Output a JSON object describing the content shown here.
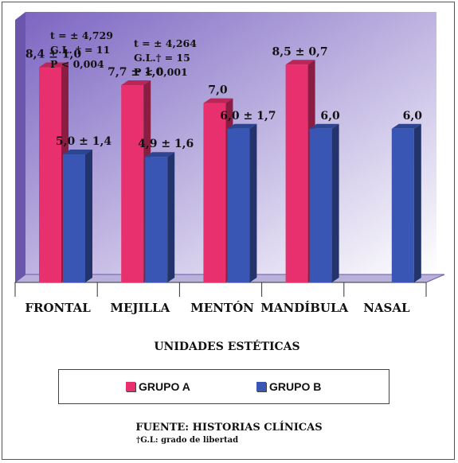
{
  "chart_data": {
    "type": "bar",
    "categories": [
      "FRONTAL",
      "MEJILLA",
      "MENTÓN",
      "MANDÍBULA",
      "NASAL"
    ],
    "series": [
      {
        "name": "GRUPO A",
        "values": [
          8.4,
          7.7,
          7.0,
          8.5,
          null
        ],
        "labels": [
          "8,4 ± 1,0",
          "7,7 ± 1,0",
          "7,0",
          "8,5 ± 0,7",
          ""
        ],
        "color": "#e8306e"
      },
      {
        "name": "GRUPO B",
        "values": [
          5.0,
          4.9,
          6.0,
          6.0,
          6.0
        ],
        "labels": [
          "5,0 ± 1,4",
          "4,9 ± 1,6",
          "6,0 ± 1,7",
          "6,0",
          "6,0"
        ],
        "color": "#3a56b4"
      }
    ],
    "ylim": [
      0,
      10
    ],
    "xlabel": "UNIDADES ESTÉTICAS",
    "ylabel": "",
    "grid": false,
    "legend_placement": "bottom",
    "annotations": [
      {
        "category": "FRONTAL",
        "lines": [
          "t = ± 4,729",
          "G.L. † = 11",
          "P < 0,004"
        ]
      },
      {
        "category": "MEJILLA",
        "lines": [
          "t = ± 4,264",
          "G.L.† = 15",
          "P < 0,001"
        ]
      }
    ],
    "background_gradient": [
      "#7c66c2",
      "#ffffff"
    ]
  },
  "source": "FUENTE: HISTORIAS CLÍNICAS",
  "footnote": "†G.L: grado de libertad"
}
